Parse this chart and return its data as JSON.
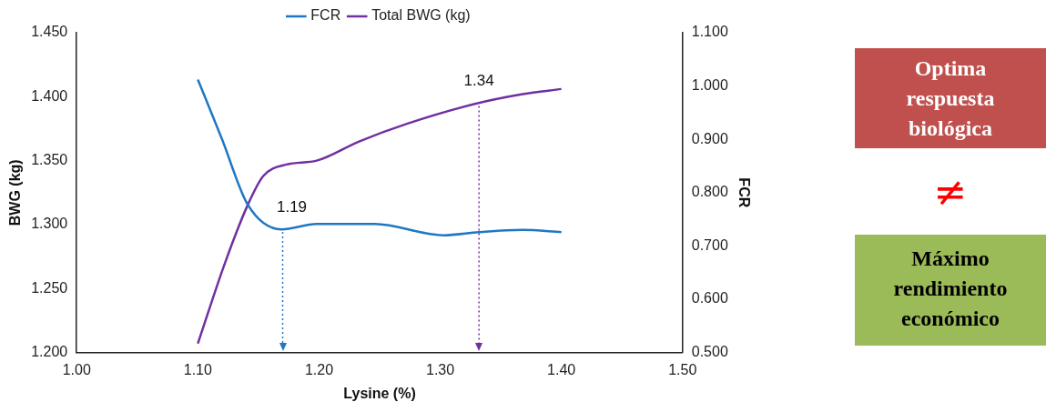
{
  "chart_data": {
    "type": "line",
    "xlabel": "Lysine (%)",
    "ylabel": "BWG (kg)",
    "y2label": "FCR",
    "xlim": [
      1.0,
      1.5
    ],
    "xticks": [
      {
        "value": 1.0,
        "label": "1.00"
      },
      {
        "value": 1.1,
        "label": "1.10"
      },
      {
        "value": 1.2,
        "label": "1.20"
      },
      {
        "value": 1.3,
        "label": "1.30"
      },
      {
        "value": 1.4,
        "label": "1.40"
      },
      {
        "value": 1.5,
        "label": "1.50"
      }
    ],
    "ylim": [
      1.2,
      1.45
    ],
    "yticks": [
      {
        "value": 1.2,
        "label": "1.200"
      },
      {
        "value": 1.25,
        "label": "1.250"
      },
      {
        "value": 1.3,
        "label": "1.300"
      },
      {
        "value": 1.35,
        "label": "1.350"
      },
      {
        "value": 1.4,
        "label": "1.400"
      },
      {
        "value": 1.45,
        "label": "1.450"
      }
    ],
    "y2lim": [
      0.5,
      1.1
    ],
    "y2ticks": [
      {
        "value": 0.5,
        "label": "0.500"
      },
      {
        "value": 0.6,
        "label": "0.600"
      },
      {
        "value": 0.7,
        "label": "0.700"
      },
      {
        "value": 0.8,
        "label": "0.800"
      },
      {
        "value": 0.9,
        "label": "0.900"
      },
      {
        "value": 1.0,
        "label": "1.000"
      },
      {
        "value": 1.1,
        "label": "1.100"
      }
    ],
    "series": [
      {
        "name": "FCR",
        "color": "#1f77c4",
        "axis": "y2",
        "x": [
          1.1,
          1.12,
          1.141,
          1.169,
          1.198,
          1.246,
          1.303,
          1.332,
          1.368,
          1.4
        ],
        "values": [
          1.012,
          0.9,
          0.778,
          0.731,
          0.741,
          0.741,
          0.72,
          0.726,
          0.73,
          0.726
        ]
      },
      {
        "name": "Total BWG (kg)",
        "color": "#7030a0",
        "axis": "y",
        "x": [
          1.1,
          1.122,
          1.141,
          1.154,
          1.173,
          1.198,
          1.233,
          1.273,
          1.327,
          1.368,
          1.4
        ],
        "values": [
          1.207,
          1.269,
          1.315,
          1.338,
          1.347,
          1.35,
          1.365,
          1.379,
          1.394,
          1.402,
          1.406
        ]
      }
    ],
    "ref_lines": [
      {
        "axis": "x",
        "value": 1.17,
        "color": "#1f77c4",
        "line_style": "dotted"
      },
      {
        "axis": "x",
        "value": 1.332,
        "color": "#7030a0",
        "line_style": "dotted"
      }
    ],
    "annotations": [
      "1.19",
      "1.34",
      "Optima respuesta biológica",
      "≠",
      "Máximo rendimiento económico"
    ],
    "legend": "top",
    "marker": "none",
    "grid": false
  }
}
